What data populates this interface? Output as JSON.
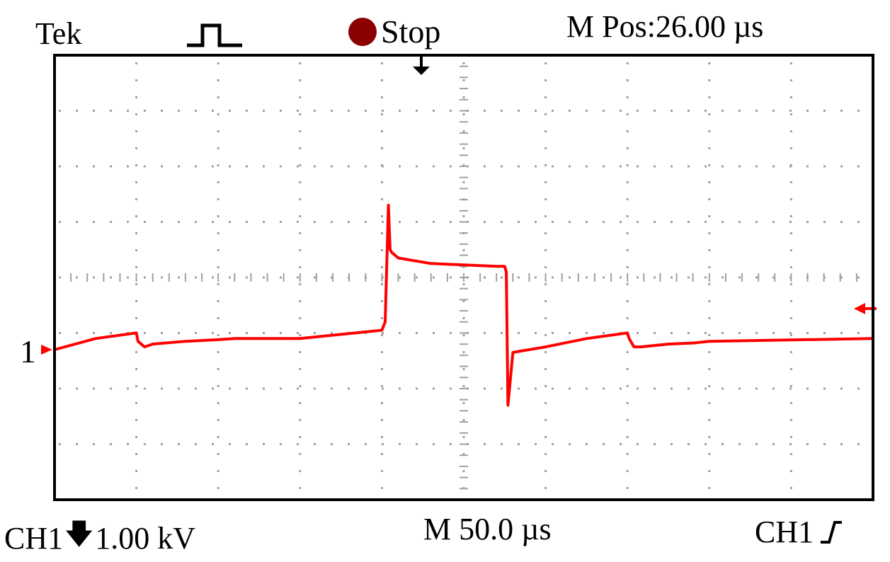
{
  "header": {
    "brand": "Tek",
    "acquire_icon": "single-pulse-icon",
    "status_icon": "stop-indicator-icon",
    "status_text": "Stop",
    "horizontal_position": "M Pos:26.00 µs"
  },
  "channel": {
    "marker_label": "1",
    "coupling_icon": "dc-coupling-arrow-icon",
    "scale_text": "1.00 kV",
    "name": "CH1"
  },
  "footer": {
    "timebase": "M 50.0 µs",
    "trigger_source": "CH1",
    "trigger_slope_icon": "rising-edge-icon"
  },
  "colors": {
    "trace": "#ff0000",
    "stop_indicator": "#8b0000",
    "grid": "#a0a0a0",
    "frame": "#000000"
  },
  "chart_data": {
    "type": "line",
    "x_unit": "µs",
    "y_unit": "kV",
    "volts_per_div": 1.0,
    "time_per_div": 50.0,
    "x_range": [
      -250,
      250
    ],
    "y_range": [
      -4,
      4
    ],
    "grid": true,
    "series": [
      {
        "x": [
          -250,
          -225,
          -200,
          -199,
          -195,
          -190,
          -170,
          -150,
          -140,
          -100,
          -50,
          -48,
          -46,
          -45,
          -44,
          -40,
          -20,
          20,
          25,
          26,
          27,
          30,
          50,
          75,
          100,
          101,
          104,
          108,
          125,
          140,
          150,
          250
        ],
        "y": [
          0.0,
          0.2,
          0.3,
          0.15,
          0.05,
          0.1,
          0.15,
          0.18,
          0.2,
          0.2,
          0.35,
          0.5,
          2.6,
          1.8,
          1.75,
          1.65,
          1.55,
          1.5,
          1.5,
          1.4,
          -1.0,
          -0.05,
          0.05,
          0.2,
          0.3,
          0.2,
          0.05,
          0.05,
          0.1,
          0.12,
          0.15,
          0.2
        ]
      }
    ]
  }
}
